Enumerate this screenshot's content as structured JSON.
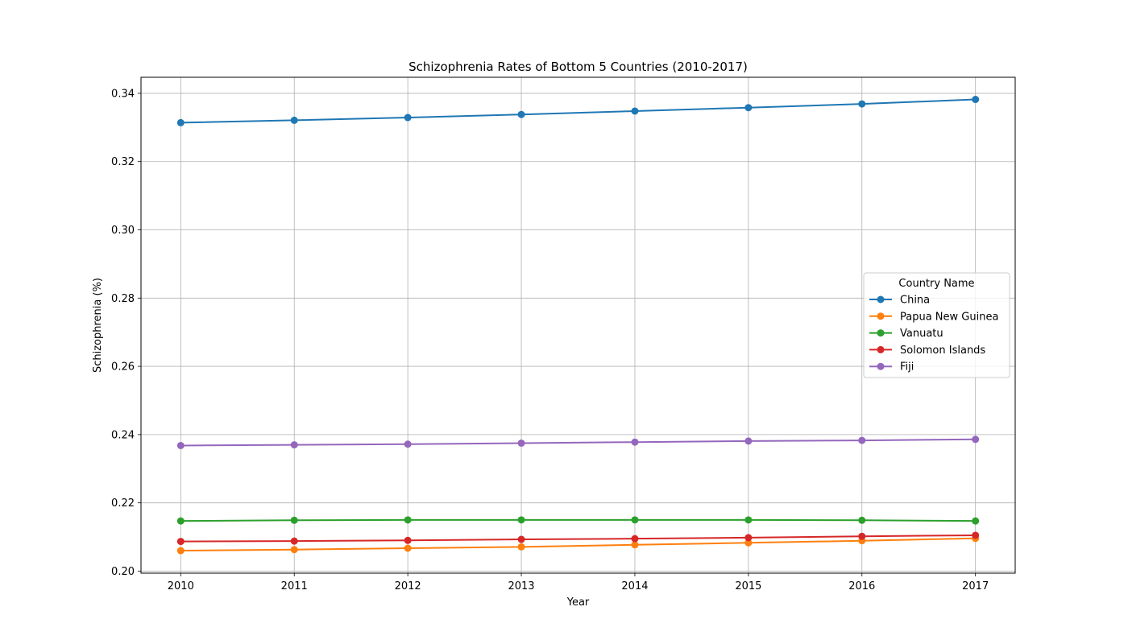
{
  "chart_data": {
    "type": "line",
    "title": "Schizophrenia Rates of Bottom 5 Countries (2010-2017)",
    "xlabel": "Year",
    "ylabel": "Schizophrenia (%)",
    "x": [
      2010,
      2011,
      2012,
      2013,
      2014,
      2015,
      2016,
      2017
    ],
    "xlim": [
      2009.65,
      2017.35
    ],
    "ylim": [
      0.1994,
      0.3447
    ],
    "yticks": [
      0.2,
      0.22,
      0.24,
      0.26,
      0.28,
      0.3,
      0.32,
      0.34
    ],
    "ytick_labels": [
      "0.20",
      "0.22",
      "0.24",
      "0.26",
      "0.28",
      "0.30",
      "0.32",
      "0.34"
    ],
    "xtick_labels": [
      "2010",
      "2011",
      "2012",
      "2013",
      "2014",
      "2015",
      "2016",
      "2017"
    ],
    "grid": true,
    "legend": {
      "title": "Country Name",
      "placement": "center-right"
    },
    "series": [
      {
        "name": "China",
        "color": "#1f77b4",
        "values": [
          0.3314,
          0.3321,
          0.3329,
          0.3338,
          0.3348,
          0.3358,
          0.3369,
          0.3382
        ]
      },
      {
        "name": "Papua New Guinea",
        "color": "#ff7f0e",
        "values": [
          0.206,
          0.2063,
          0.2067,
          0.2071,
          0.2077,
          0.2083,
          0.2089,
          0.2096
        ]
      },
      {
        "name": "Vanuatu",
        "color": "#2ca02c",
        "values": [
          0.2147,
          0.2149,
          0.215,
          0.215,
          0.215,
          0.215,
          0.2149,
          0.2147
        ]
      },
      {
        "name": "Solomon Islands",
        "color": "#d62728",
        "values": [
          0.2087,
          0.2088,
          0.209,
          0.2093,
          0.2095,
          0.2098,
          0.2102,
          0.2105
        ]
      },
      {
        "name": "Fiji",
        "color": "#9467bd",
        "values": [
          0.2368,
          0.237,
          0.2372,
          0.2375,
          0.2378,
          0.2381,
          0.2383,
          0.2386
        ]
      }
    ]
  }
}
